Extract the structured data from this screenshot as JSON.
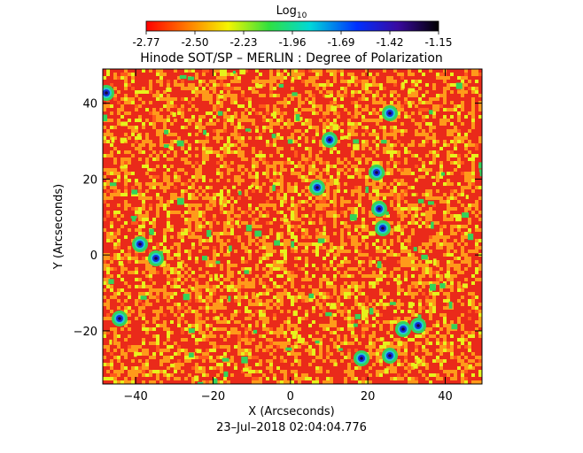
{
  "colorbar": {
    "label_main": "Log",
    "label_sub": "10",
    "ticks": [
      "-2.77",
      "-2.50",
      "-2.23",
      "-1.96",
      "-1.69",
      "-1.42",
      "-1.15"
    ],
    "min": -2.77,
    "max": -1.15
  },
  "plot": {
    "title": "Hinode SOT/SP – MERLIN : Degree of Polarization",
    "xlabel": "X (Arcseconds)",
    "ylabel": "Y (Arcseconds)",
    "xlim": [
      -48.5,
      49.5
    ],
    "ylim": [
      -34,
      49
    ],
    "x_ticks": [
      "-40",
      "-20",
      "0",
      "20",
      "40"
    ],
    "y_ticks": [
      "-20",
      "0",
      "20",
      "40"
    ],
    "timestamp": "23–Jul–2018 02:04:04.776"
  },
  "palette": {
    "low": "#e8201a",
    "mid": "#ff9a1a",
    "high_yellow": "#e7f21c",
    "green": "#33d35a",
    "cyan": "#25c9d4",
    "blue": "#1530d8",
    "dark": "#1a0a3e"
  }
}
